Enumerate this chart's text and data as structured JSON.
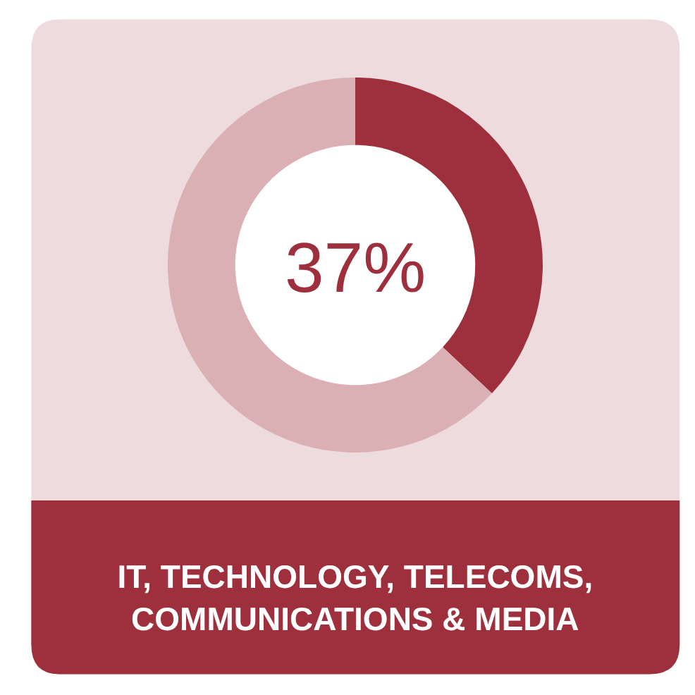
{
  "chart_data": {
    "type": "donut",
    "title": "IT, TECHNOLOGY, TELECOMS,\nCOMMUNICATIONS & MEDIA",
    "categories": [
      null,
      null
    ],
    "values": [
      37,
      63
    ],
    "colors": [
      "#9e2f3c",
      "#dbb0b5"
    ],
    "annotations": [
      "37%"
    ],
    "legend": false
  }
}
